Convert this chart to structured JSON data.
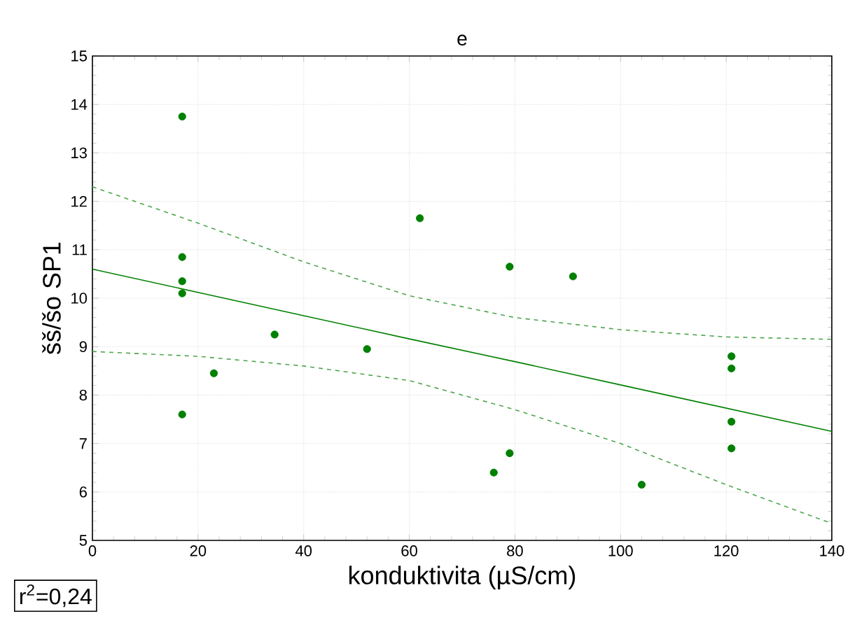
{
  "chart_data": {
    "type": "scatter",
    "title": "e",
    "xlabel": "konduktivita (µS/cm)",
    "ylabel": "šš/šo SP1",
    "annotations": [
      "r$^{2}$=0,24"
    ],
    "xlim": [
      0,
      140
    ],
    "ylim": [
      5,
      15
    ],
    "xticks": [
      0,
      20,
      40,
      60,
      80,
      100,
      120,
      140
    ],
    "yticks": [
      5,
      6,
      7,
      8,
      9,
      10,
      11,
      12,
      13,
      14,
      15
    ],
    "grid": true,
    "series": [
      {
        "type": "scatter",
        "marker": "circle",
        "color": "#008000",
        "x": [
          17,
          17,
          17,
          17,
          17,
          23,
          34.5,
          52,
          62,
          76,
          79,
          79,
          91,
          104,
          121,
          121,
          121,
          121
        ],
        "values": [
          13.75,
          10.85,
          10.35,
          10.1,
          7.6,
          8.45,
          9.25,
          8.95,
          11.65,
          6.4,
          6.8,
          10.65,
          10.45,
          6.15,
          8.8,
          8.55,
          7.45,
          6.9
        ]
      },
      {
        "type": "line",
        "marker": "none",
        "line_style": "solid",
        "color": "#008000",
        "x": [
          0,
          20,
          40,
          60,
          80,
          100,
          120,
          140
        ],
        "values": [
          10.6,
          10.12,
          9.64,
          9.16,
          8.69,
          8.21,
          7.73,
          7.25
        ]
      },
      {
        "type": "line",
        "marker": "none",
        "line_style": "dashed",
        "color": "#4ca64c",
        "x": [
          0,
          20,
          40,
          60,
          80,
          100,
          120,
          140
        ],
        "values": [
          12.3,
          11.55,
          10.75,
          10.05,
          9.6,
          9.35,
          9.2,
          9.15
        ]
      },
      {
        "type": "line",
        "marker": "none",
        "line_style": "dashed",
        "color": "#4ca64c",
        "x": [
          0,
          20,
          40,
          60,
          80,
          100,
          120,
          140
        ],
        "values": [
          8.9,
          8.8,
          8.6,
          8.3,
          7.7,
          7.0,
          6.15,
          5.35
        ]
      }
    ]
  }
}
